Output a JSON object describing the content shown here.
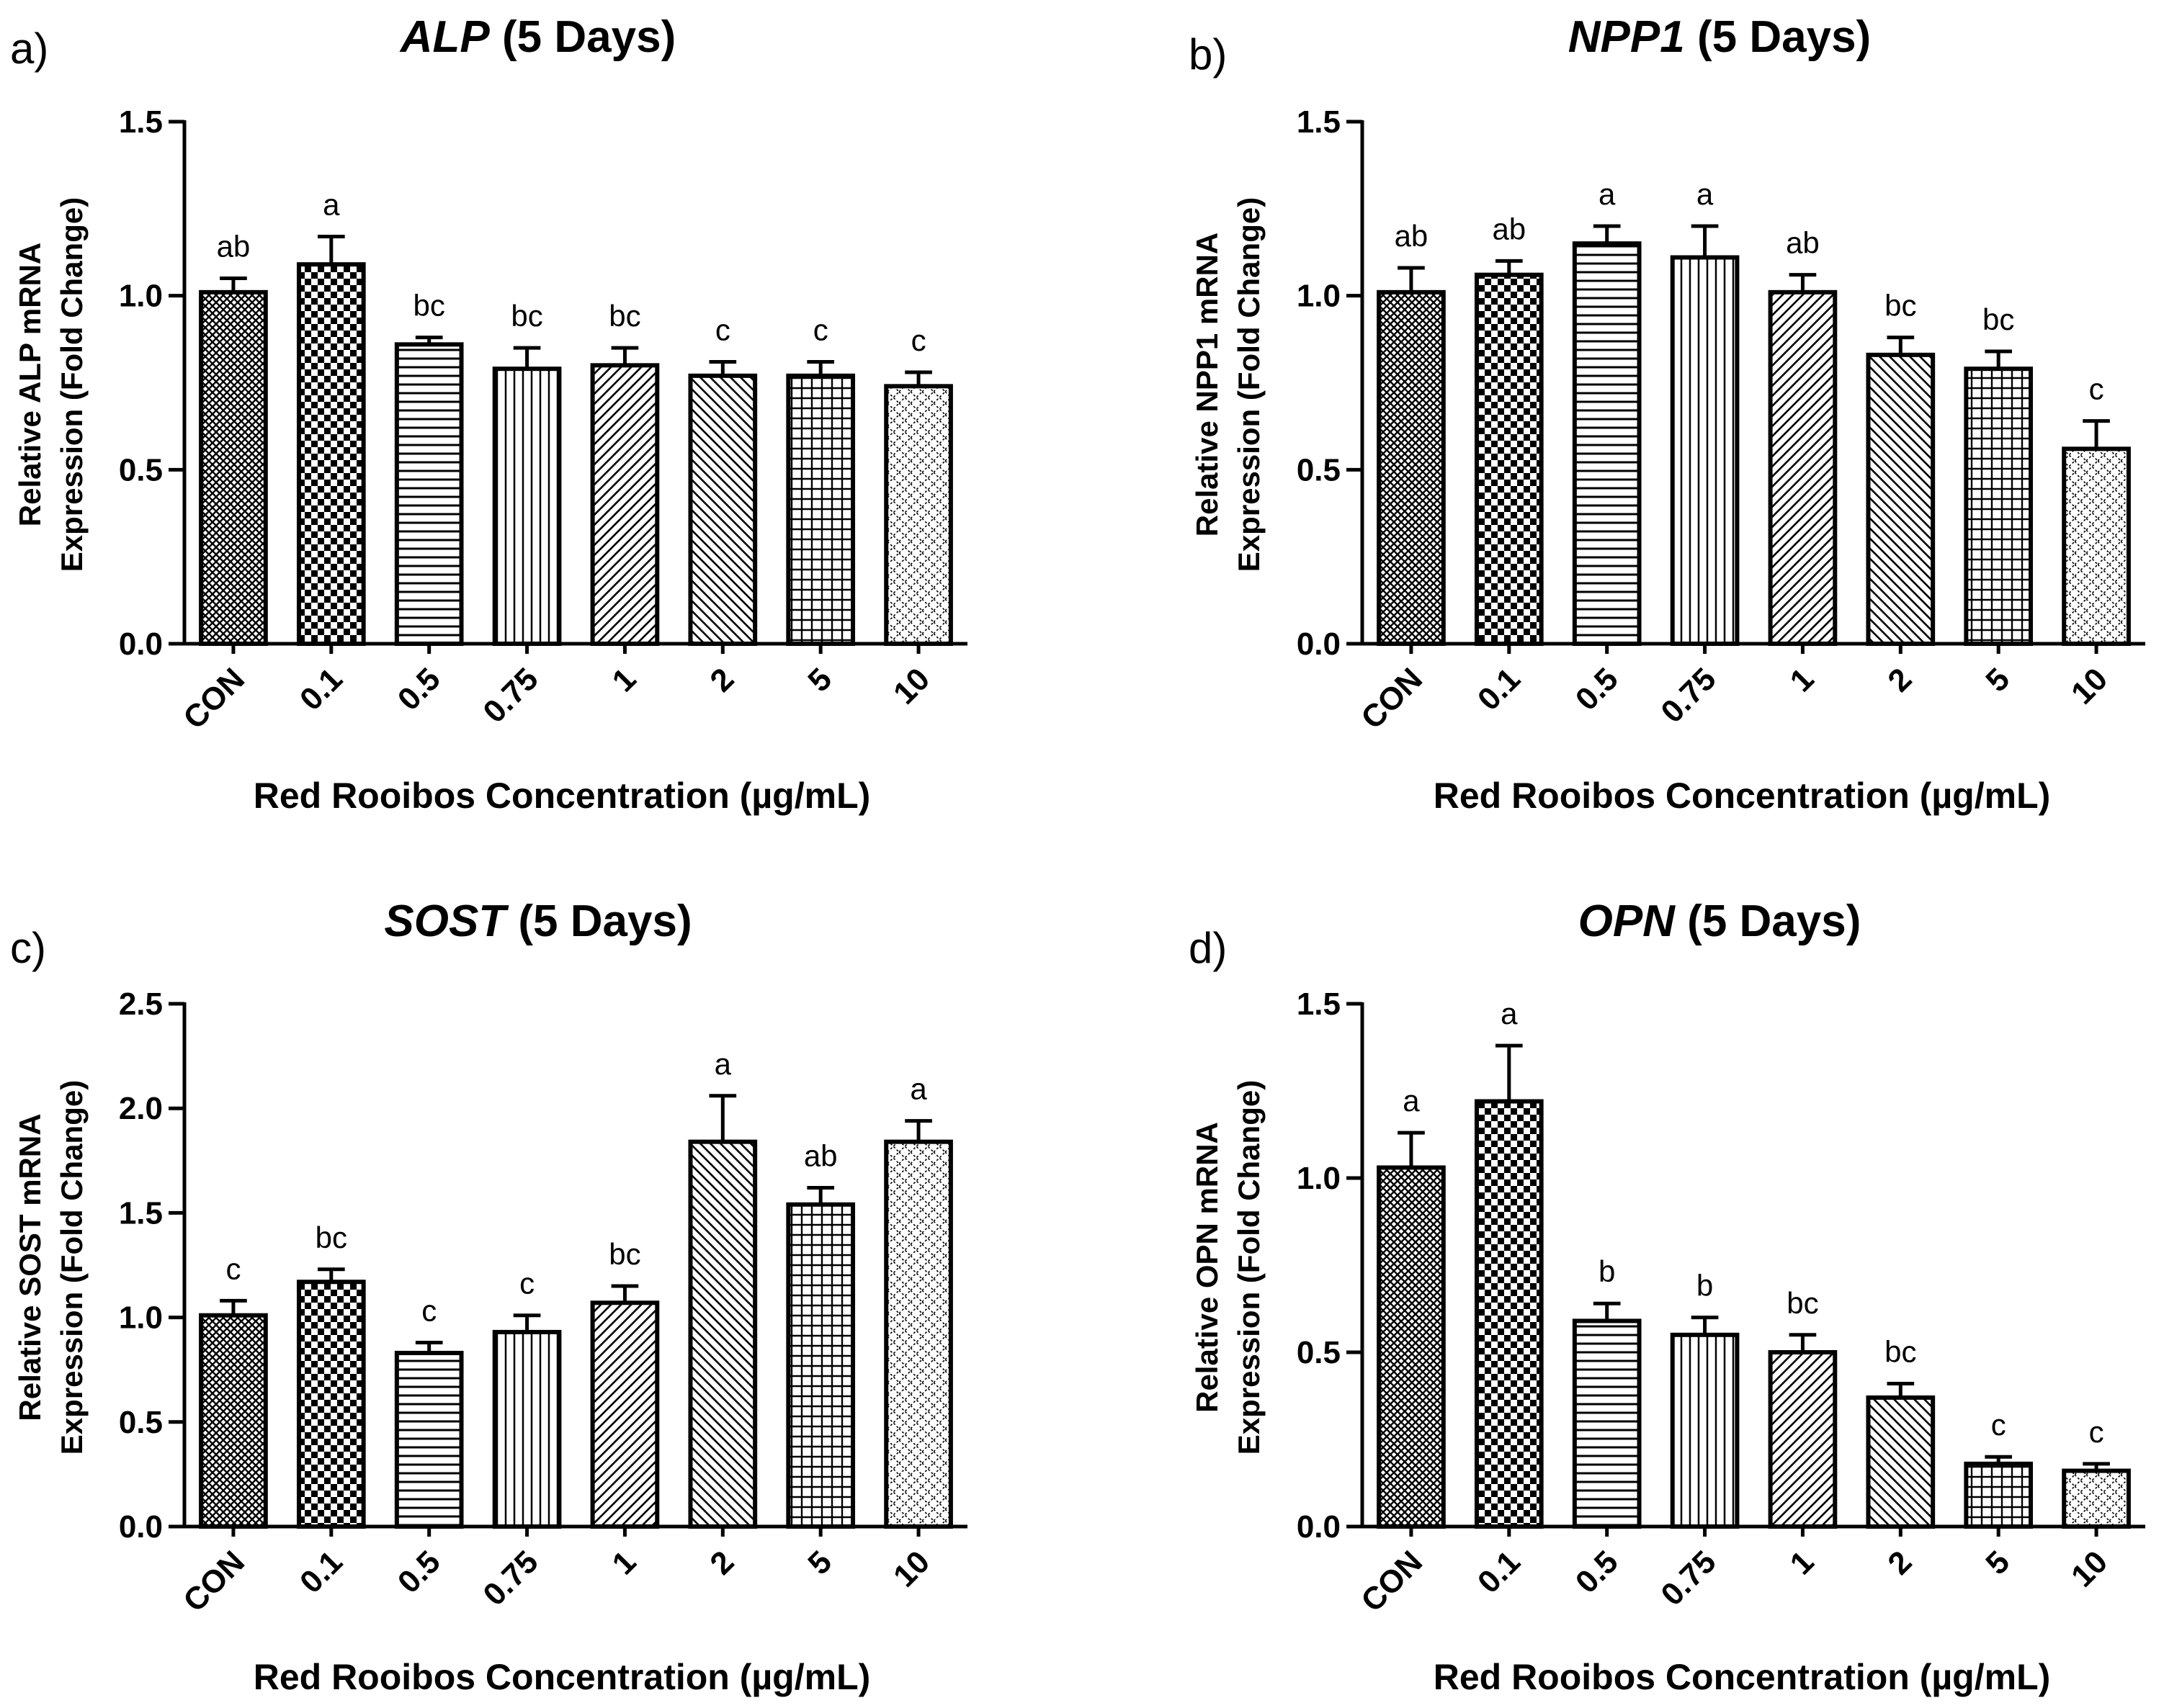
{
  "figure": {
    "pattern_fills": [
      "crosshatch-fine",
      "checker",
      "horizontal-lines",
      "vertical-lines",
      "diagonal-right",
      "diagonal-left",
      "grid",
      "dotted-diagonal"
    ]
  },
  "chart_data": [
    {
      "type": "bar",
      "panel_label": "a)",
      "title_gene": "ALP",
      "title_suffix": " (5 Days)",
      "ylabel_line1": "Relative ALP mRNA",
      "ylabel_line2": "Expression (Fold Change)",
      "xlabel": "Red Rooibos Concentration (µg/mL)",
      "categories": [
        "CON",
        "0.1",
        "0.5",
        "0.75",
        "1",
        "2",
        "5",
        "10"
      ],
      "values": [
        1.01,
        1.09,
        0.86,
        0.79,
        0.8,
        0.77,
        0.77,
        0.74
      ],
      "errors": [
        0.04,
        0.08,
        0.02,
        0.06,
        0.05,
        0.04,
        0.04,
        0.04
      ],
      "significance": [
        "ab",
        "a",
        "bc",
        "bc",
        "bc",
        "c",
        "c",
        "c"
      ],
      "ylim": [
        0,
        1.5
      ],
      "yticks": [
        "0.0",
        "0.5",
        "1.0",
        "1.5"
      ]
    },
    {
      "type": "bar",
      "panel_label": "b)",
      "title_gene": "NPP1",
      "title_suffix": " (5 Days)",
      "ylabel_line1": "Relative NPP1 mRNA",
      "ylabel_line2": "Expression (Fold Change)",
      "xlabel": "Red Rooibos Concentration (µg/mL)",
      "categories": [
        "CON",
        "0.1",
        "0.5",
        "0.75",
        "1",
        "2",
        "5",
        "10"
      ],
      "values": [
        1.01,
        1.06,
        1.15,
        1.11,
        1.01,
        0.83,
        0.79,
        0.56
      ],
      "errors": [
        0.07,
        0.04,
        0.05,
        0.09,
        0.05,
        0.05,
        0.05,
        0.08
      ],
      "significance": [
        "ab",
        "ab",
        "a",
        "a",
        "ab",
        "bc",
        "bc",
        "c"
      ],
      "ylim": [
        0,
        1.5
      ],
      "yticks": [
        "0.0",
        "0.5",
        "1.0",
        "1.5"
      ]
    },
    {
      "type": "bar",
      "panel_label": "c)",
      "title_gene": "SOST",
      "title_suffix": " (5 Days)",
      "ylabel_line1": "Relative SOST mRNA",
      "ylabel_line2": "Expression (Fold Change)",
      "xlabel": "Red Rooibos Concentration (µg/mL)",
      "categories": [
        "CON",
        "0.1",
        "0.5",
        "0.75",
        "1",
        "2",
        "5",
        "10"
      ],
      "values": [
        1.01,
        1.17,
        0.83,
        0.93,
        1.07,
        1.84,
        1.54,
        1.84
      ],
      "errors": [
        0.07,
        0.06,
        0.05,
        0.08,
        0.08,
        0.22,
        0.08,
        0.1
      ],
      "significance": [
        "c",
        "bc",
        "c",
        "c",
        "bc",
        "a",
        "ab",
        "a"
      ],
      "ylim": [
        0,
        2.5
      ],
      "yticks": [
        "0.0",
        "0.5",
        "1.0",
        "1.5",
        "2.0",
        "2.5"
      ]
    },
    {
      "type": "bar",
      "panel_label": "d)",
      "title_gene": "OPN",
      "title_suffix": " (5 Days)",
      "ylabel_line1": "Relative OPN mRNA",
      "ylabel_line2": "Expression (Fold Change)",
      "xlabel": "Red Rooibos Concentration (µg/mL)",
      "categories": [
        "CON",
        "0.1",
        "0.5",
        "0.75",
        "1",
        "2",
        "5",
        "10"
      ],
      "values": [
        1.03,
        1.22,
        0.59,
        0.55,
        0.5,
        0.37,
        0.18,
        0.16
      ],
      "errors": [
        0.1,
        0.16,
        0.05,
        0.05,
        0.05,
        0.04,
        0.02,
        0.02
      ],
      "significance": [
        "a",
        "a",
        "b",
        "b",
        "bc",
        "bc",
        "c",
        "c"
      ],
      "ylim": [
        0,
        1.5
      ],
      "yticks": [
        "0.0",
        "0.5",
        "1.0",
        "1.5"
      ]
    }
  ]
}
